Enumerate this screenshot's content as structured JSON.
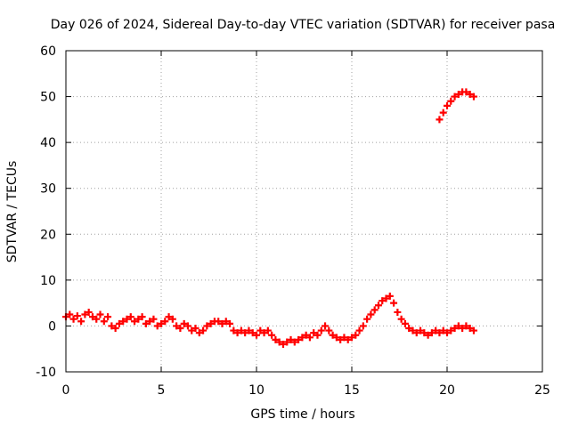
{
  "chart_data": {
    "type": "scatter",
    "title": "Day 026 of 2024, Sidereal Day-to-day VTEC variation (SDTVAR) for receiver pasa",
    "xlabel": "GPS time / hours",
    "ylabel": "SDTVAR / TECUs",
    "xlim": [
      0,
      25
    ],
    "ylim": [
      -10,
      60
    ],
    "xticks": [
      0,
      5,
      10,
      15,
      20,
      25
    ],
    "yticks": [
      -10,
      0,
      10,
      20,
      30,
      40,
      50,
      60
    ],
    "xtick_labels": [
      "0",
      "5",
      "10",
      "15",
      "20",
      "25"
    ],
    "ytick_labels": [
      "-10",
      "0",
      "10",
      "20",
      "30",
      "40",
      "50",
      "60"
    ],
    "grid": true,
    "marker": "+",
    "series": [
      {
        "name": "SDTVAR",
        "color": "#ff0000",
        "points": [
          [
            0.0,
            2.0
          ],
          [
            0.2,
            2.5
          ],
          [
            0.4,
            1.5
          ],
          [
            0.6,
            2.2
          ],
          [
            0.8,
            1.0
          ],
          [
            1.0,
            2.5
          ],
          [
            1.2,
            3.0
          ],
          [
            1.4,
            2.0
          ],
          [
            1.6,
            1.5
          ],
          [
            1.8,
            2.5
          ],
          [
            2.0,
            1.0
          ],
          [
            2.2,
            2.0
          ],
          [
            2.4,
            0.0
          ],
          [
            2.6,
            -0.5
          ],
          [
            2.8,
            0.5
          ],
          [
            3.0,
            1.0
          ],
          [
            3.2,
            1.5
          ],
          [
            3.4,
            2.0
          ],
          [
            3.6,
            1.0
          ],
          [
            3.8,
            1.5
          ],
          [
            4.0,
            2.0
          ],
          [
            4.2,
            0.5
          ],
          [
            4.4,
            1.0
          ],
          [
            4.6,
            1.5
          ],
          [
            4.8,
            0.0
          ],
          [
            5.0,
            0.5
          ],
          [
            5.2,
            1.0
          ],
          [
            5.4,
            2.0
          ],
          [
            5.6,
            1.5
          ],
          [
            5.8,
            0.0
          ],
          [
            6.0,
            -0.5
          ],
          [
            6.2,
            0.5
          ],
          [
            6.4,
            0.0
          ],
          [
            6.6,
            -1.0
          ],
          [
            6.8,
            -0.5
          ],
          [
            7.0,
            -1.5
          ],
          [
            7.2,
            -1.0
          ],
          [
            7.4,
            0.0
          ],
          [
            7.6,
            0.5
          ],
          [
            7.8,
            1.0
          ],
          [
            8.0,
            1.0
          ],
          [
            8.2,
            0.5
          ],
          [
            8.4,
            1.0
          ],
          [
            8.6,
            0.5
          ],
          [
            8.8,
            -1.0
          ],
          [
            9.0,
            -1.5
          ],
          [
            9.2,
            -1.0
          ],
          [
            9.4,
            -1.5
          ],
          [
            9.6,
            -1.0
          ],
          [
            9.8,
            -1.5
          ],
          [
            10.0,
            -2.0
          ],
          [
            10.2,
            -1.0
          ],
          [
            10.4,
            -1.5
          ],
          [
            10.6,
            -1.0
          ],
          [
            10.8,
            -2.0
          ],
          [
            11.0,
            -3.0
          ],
          [
            11.2,
            -3.5
          ],
          [
            11.4,
            -4.0
          ],
          [
            11.6,
            -3.5
          ],
          [
            11.8,
            -3.0
          ],
          [
            12.0,
            -3.5
          ],
          [
            12.2,
            -3.0
          ],
          [
            12.4,
            -2.5
          ],
          [
            12.6,
            -2.0
          ],
          [
            12.8,
            -2.5
          ],
          [
            13.0,
            -1.5
          ],
          [
            13.2,
            -2.0
          ],
          [
            13.4,
            -1.0
          ],
          [
            13.6,
            0.0
          ],
          [
            13.8,
            -1.0
          ],
          [
            14.0,
            -2.0
          ],
          [
            14.2,
            -2.5
          ],
          [
            14.4,
            -3.0
          ],
          [
            14.6,
            -2.5
          ],
          [
            14.8,
            -3.0
          ],
          [
            15.0,
            -2.5
          ],
          [
            15.2,
            -2.0
          ],
          [
            15.4,
            -1.0
          ],
          [
            15.6,
            0.0
          ],
          [
            15.8,
            1.5
          ],
          [
            16.0,
            2.5
          ],
          [
            16.2,
            3.5
          ],
          [
            16.4,
            4.5
          ],
          [
            16.6,
            5.5
          ],
          [
            16.8,
            6.0
          ],
          [
            17.0,
            6.5
          ],
          [
            17.2,
            5.0
          ],
          [
            17.4,
            3.0
          ],
          [
            17.6,
            1.5
          ],
          [
            17.8,
            0.5
          ],
          [
            18.0,
            -0.5
          ],
          [
            18.2,
            -1.0
          ],
          [
            18.4,
            -1.5
          ],
          [
            18.6,
            -1.0
          ],
          [
            18.8,
            -1.5
          ],
          [
            19.0,
            -2.0
          ],
          [
            19.2,
            -1.5
          ],
          [
            19.4,
            -1.0
          ],
          [
            19.6,
            -1.5
          ],
          [
            19.8,
            -1.0
          ],
          [
            20.0,
            -1.5
          ],
          [
            20.2,
            -1.0
          ],
          [
            20.4,
            -0.5
          ],
          [
            20.6,
            0.0
          ],
          [
            20.8,
            -0.5
          ],
          [
            21.0,
            0.0
          ],
          [
            21.2,
            -0.5
          ],
          [
            21.4,
            -1.0
          ],
          [
            19.6,
            45.0
          ],
          [
            19.8,
            46.5
          ],
          [
            20.0,
            48.0
          ],
          [
            20.2,
            49.0
          ],
          [
            20.4,
            50.0
          ],
          [
            20.6,
            50.5
          ],
          [
            20.8,
            51.0
          ],
          [
            21.0,
            51.0
          ],
          [
            21.2,
            50.5
          ],
          [
            21.4,
            50.0
          ]
        ]
      }
    ]
  }
}
